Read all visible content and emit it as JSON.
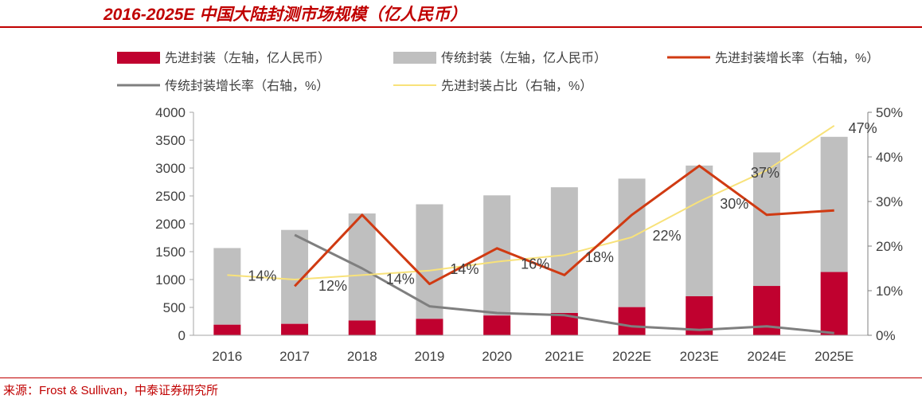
{
  "title": "2016-2025E 中国大陆封测市场规模（亿人民币）",
  "source": "来源：Frost & Sullivan，中泰证券研究所",
  "colors": {
    "advanced_bar": "#c0012f",
    "traditional_bar": "#bfbfbf",
    "advanced_growth": "#d03a12",
    "traditional_growth": "#7f7f7f",
    "advanced_share": "#f8e27a",
    "brand": "#c00000"
  },
  "chart_data": {
    "type": "bar",
    "categories": [
      "2016",
      "2017",
      "2018",
      "2019",
      "2020",
      "2021E",
      "2022E",
      "2023E",
      "2024E",
      "2025E"
    ],
    "ylim_left": [
      0,
      4000
    ],
    "yticks_left": [
      "0",
      "500",
      "1000",
      "1500",
      "2000",
      "2500",
      "3000",
      "3500",
      "4000"
    ],
    "ylim_right": [
      0,
      50
    ],
    "yticks_right": [
      "0%",
      "10%",
      "20%",
      "30%",
      "40%",
      "50%"
    ],
    "legend_position": "top",
    "grid": false,
    "series": [
      {
        "name": "先进封装（左轴，亿人民币）",
        "kind": "bar",
        "axis": "left",
        "values": [
          190,
          205,
          265,
          295,
          355,
          400,
          505,
          700,
          885,
          1135
        ]
      },
      {
        "name": "传统封装（左轴，亿人民币）",
        "kind": "bar",
        "axis": "left",
        "values": [
          1375,
          1685,
          1920,
          2055,
          2155,
          2255,
          2305,
          2345,
          2395,
          2425
        ]
      },
      {
        "name": "先进封装增长率（右轴，%）",
        "kind": "line",
        "axis": "right",
        "values": [
          null,
          11,
          27,
          11.5,
          19.5,
          13.5,
          27,
          38,
          27,
          28
        ]
      },
      {
        "name": "传统封装增长率（右轴，%）",
        "kind": "line",
        "axis": "right",
        "values": [
          null,
          22.5,
          15,
          6.5,
          5,
          4.5,
          2,
          1.2,
          2,
          0.5
        ]
      },
      {
        "name": "先进封装占比（右轴，%）",
        "kind": "line",
        "axis": "right",
        "values": [
          13.5,
          12.5,
          13.5,
          14.5,
          16.5,
          18,
          22,
          30,
          37,
          47
        ]
      }
    ],
    "share_labels": [
      "14%",
      "12%",
      "14%",
      "14%",
      "16%",
      "18%",
      "22%",
      "30%",
      "37%",
      "47%"
    ]
  }
}
